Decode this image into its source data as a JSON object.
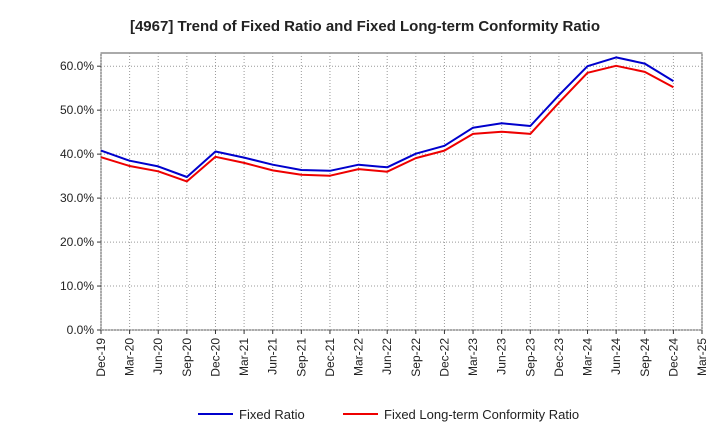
{
  "chart_data": {
    "type": "line",
    "title": "[4967]  Trend of Fixed Ratio and Fixed Long-term Conformity Ratio",
    "xlabel": "",
    "ylabel": "",
    "x": [
      "Dec-19",
      "Mar-20",
      "Jun-20",
      "Sep-20",
      "Dec-20",
      "Mar-21",
      "Jun-21",
      "Sep-21",
      "Dec-21",
      "Mar-22",
      "Jun-22",
      "Sep-22",
      "Dec-22",
      "Mar-23",
      "Jun-23",
      "Sep-23",
      "Dec-23",
      "Mar-24",
      "Jun-24",
      "Sep-24",
      "Dec-24",
      "Mar-25"
    ],
    "x_tick_labels": [
      "Dec-19",
      "Mar-20",
      "Jun-20",
      "Sep-20",
      "Dec-20",
      "Mar-21",
      "Jun-21",
      "Sep-21",
      "Dec-21",
      "Mar-22",
      "Jun-22",
      "Sep-22",
      "Dec-22",
      "Mar-23",
      "Jun-23",
      "Sep-23",
      "Dec-23",
      "Mar-24",
      "Jun-24",
      "Sep-24",
      "Dec-24",
      "Mar-25"
    ],
    "y_tick_labels": [
      "0.0%",
      "10.0%",
      "20.0%",
      "30.0%",
      "40.0%",
      "50.0%",
      "60.0%"
    ],
    "y_ticks": [
      0,
      10,
      20,
      30,
      40,
      50,
      60
    ],
    "ylim": [
      0,
      63
    ],
    "grid": true,
    "legend_position": "bottom",
    "series": [
      {
        "name": "Fixed Ratio",
        "color": "#0000cc",
        "values": [
          40.8,
          38.5,
          37.2,
          34.8,
          40.6,
          39.2,
          37.6,
          36.4,
          36.2,
          37.6,
          37.0,
          40.1,
          41.9,
          46.0,
          47.0,
          46.4,
          53.4,
          60.0,
          62.0,
          60.6,
          56.6,
          null
        ]
      },
      {
        "name": "Fixed Long-term Conformity Ratio",
        "color": "#ee0000",
        "values": [
          39.3,
          37.3,
          36.1,
          33.8,
          39.4,
          38.0,
          36.3,
          35.3,
          35.1,
          36.6,
          36.0,
          39.1,
          40.8,
          44.6,
          45.1,
          44.6,
          51.7,
          58.5,
          60.1,
          58.7,
          55.2,
          null
        ]
      }
    ]
  }
}
